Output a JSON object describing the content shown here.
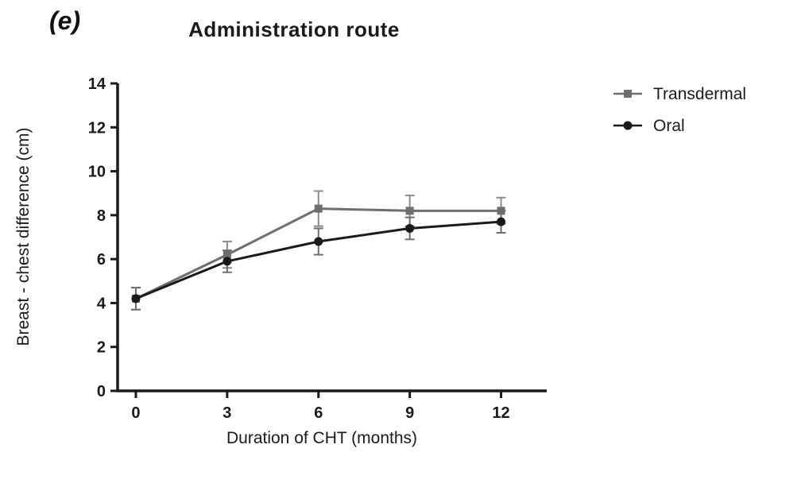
{
  "chart_data": {
    "type": "line",
    "panel_label": "(e)",
    "title": "Administration route",
    "xlabel": "Duration of CHT (months)",
    "ylabel": "Breast - chest difference (cm)",
    "x": [
      0,
      3,
      6,
      9,
      12
    ],
    "xticks": [
      0,
      3,
      6,
      9,
      12
    ],
    "yticks": [
      0,
      2,
      4,
      6,
      8,
      10,
      12,
      14
    ],
    "xlim": [
      -0.6,
      13.5
    ],
    "ylim": [
      0,
      14
    ],
    "grid": false,
    "legend_position": "right",
    "error_bars": true,
    "series": [
      {
        "name": "Transdermal",
        "marker": "square",
        "color": "#6d6e71",
        "error_color": "#8a8c8f",
        "values": [
          4.2,
          6.2,
          8.3,
          8.2,
          8.2
        ],
        "errors": [
          0.5,
          0.6,
          0.8,
          0.7,
          0.6
        ]
      },
      {
        "name": "Oral",
        "marker": "circle",
        "color": "#1a1a1a",
        "error_color": "#6e6e6e",
        "values": [
          4.2,
          5.9,
          6.8,
          7.4,
          7.7
        ],
        "errors": [
          0.5,
          0.5,
          0.6,
          0.5,
          0.5
        ]
      }
    ]
  }
}
